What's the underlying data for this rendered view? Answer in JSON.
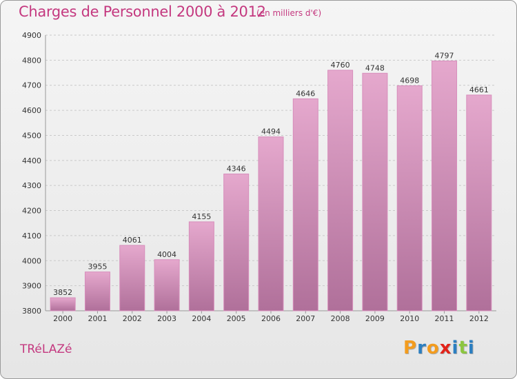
{
  "header": {
    "title": "Charges de Personnel 2000 à 2012",
    "subtitle": "(en milliers d'€)"
  },
  "footer": {
    "place": "TRéLAZé",
    "logo_letters": [
      "P",
      "r",
      "o",
      "x",
      "i",
      "t",
      "i"
    ],
    "logo_colors": [
      "#f39c1e",
      "#2c7fc1",
      "#f39c1e",
      "#e2231a",
      "#2c7fc1",
      "#8cc63f",
      "#2c7fc1"
    ]
  },
  "colors": {
    "bar_top": "#e5a8cd",
    "bar_bottom": "#b0709a",
    "bar_edge": "#d78dbb",
    "text": "#333333",
    "accent": "#c4387f"
  },
  "chart_data": {
    "type": "bar",
    "categories": [
      "2000",
      "2001",
      "2002",
      "2003",
      "2004",
      "2005",
      "2006",
      "2007",
      "2008",
      "2009",
      "2010",
      "2011",
      "2012"
    ],
    "values": [
      3852,
      3955,
      4061,
      4004,
      4155,
      4346,
      4494,
      4646,
      4760,
      4748,
      4698,
      4797,
      4661
    ],
    "ylim": [
      3800,
      4900
    ],
    "yticks": [
      3800,
      3900,
      4000,
      4100,
      4200,
      4300,
      4400,
      4500,
      4600,
      4700,
      4800,
      4900
    ],
    "grid": true
  }
}
